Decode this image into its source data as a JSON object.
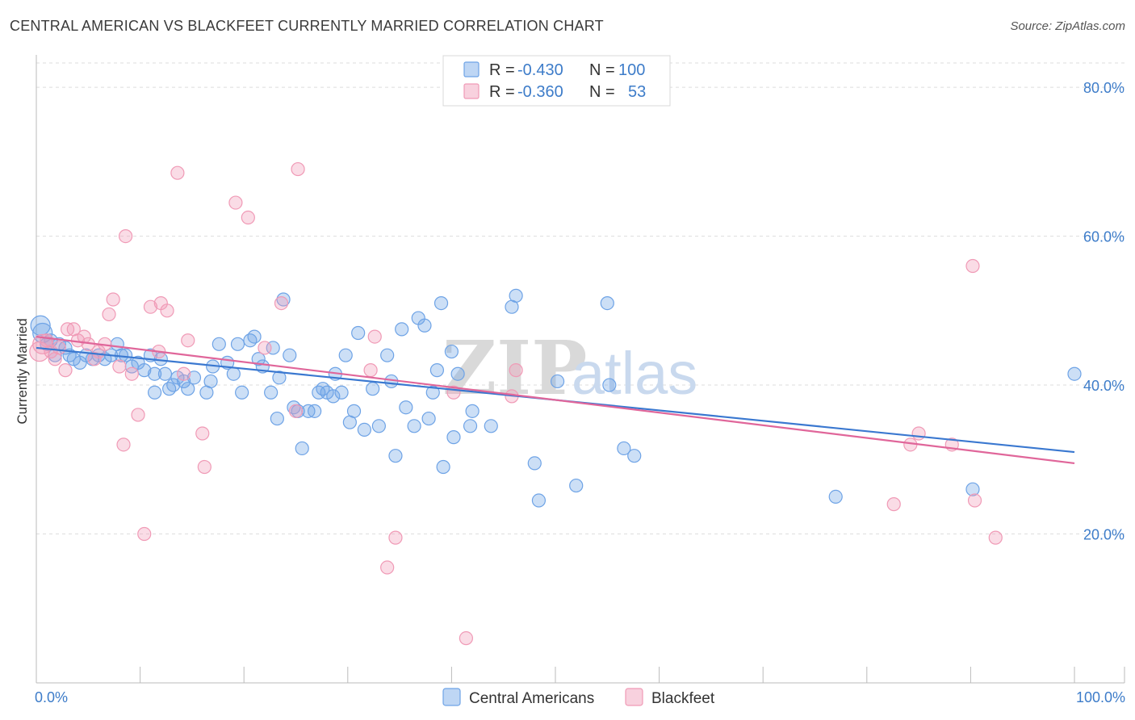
{
  "title": "CENTRAL AMERICAN VS BLACKFEET CURRENTLY MARRIED CORRELATION CHART",
  "source": "Source: ZipAtlas.com",
  "watermark": {
    "zip": "ZIP",
    "atlas": "atlas"
  },
  "legend_box": {
    "rows": [
      {
        "r_label": "R =",
        "r_value": "-0.430",
        "n_label": "N =",
        "n_value": "100",
        "color": "#6ea3e6"
      },
      {
        "r_label": "R =",
        "r_value": "-0.360",
        "n_label": "N =",
        "n_value": "53",
        "color": "#f09ab6"
      }
    ]
  },
  "chart_data": {
    "type": "scatter",
    "title": "CENTRAL AMERICAN VS BLACKFEET CURRENTLY MARRIED CORRELATION CHART",
    "ylabel": "Currently Married",
    "xlabel": "",
    "xlim": [
      0,
      100
    ],
    "ylim": [
      0,
      85
    ],
    "x_tick_labels": [
      "0.0%",
      "100.0%"
    ],
    "y_ticks": [
      20,
      40,
      60,
      80
    ],
    "y_tick_labels": [
      "20.0%",
      "40.0%",
      "60.0%",
      "80.0%"
    ],
    "grid": true,
    "legend": "bottom-center",
    "series": [
      {
        "name": "Central Americans",
        "color": "#6ea3e6",
        "trend": {
          "x": [
            0,
            100
          ],
          "y": [
            45.0,
            31.0
          ],
          "color": "#3a78d0"
        },
        "points": [
          [
            0.4,
            48
          ],
          [
            0.6,
            47
          ],
          [
            1,
            45.5
          ],
          [
            1.4,
            46
          ],
          [
            1.8,
            44
          ],
          [
            2.2,
            45.5
          ],
          [
            2.8,
            45
          ],
          [
            3.2,
            44
          ],
          [
            3.6,
            43.5
          ],
          [
            4.2,
            43
          ],
          [
            4.8,
            44
          ],
          [
            5.4,
            43.5
          ],
          [
            6,
            44
          ],
          [
            6.6,
            43.5
          ],
          [
            7.2,
            44
          ],
          [
            7.8,
            45.5
          ],
          [
            8.2,
            44
          ],
          [
            8.6,
            44
          ],
          [
            9.2,
            42.5
          ],
          [
            9.8,
            43
          ],
          [
            10.4,
            42
          ],
          [
            11,
            44
          ],
          [
            11.4,
            41.5
          ],
          [
            12,
            43.5
          ],
          [
            12.4,
            41.5
          ],
          [
            12.8,
            39.5
          ],
          [
            13.2,
            40
          ],
          [
            13.6,
            41
          ],
          [
            14.2,
            40.5
          ],
          [
            14.6,
            39.5
          ],
          [
            15.2,
            41
          ],
          [
            16.4,
            39
          ],
          [
            16.8,
            40.5
          ],
          [
            17,
            42.5
          ],
          [
            17.6,
            45.5
          ],
          [
            18.4,
            43
          ],
          [
            19,
            41.5
          ],
          [
            19.4,
            45.5
          ],
          [
            19.8,
            39
          ],
          [
            20.6,
            46
          ],
          [
            21,
            46.5
          ],
          [
            21.4,
            43.5
          ],
          [
            21.8,
            42.5
          ],
          [
            22.6,
            39
          ],
          [
            23.2,
            35.5
          ],
          [
            23.4,
            41
          ],
          [
            23.8,
            51.5
          ],
          [
            24.4,
            44
          ],
          [
            24.8,
            37
          ],
          [
            25.2,
            36.5
          ],
          [
            25.6,
            31.5
          ],
          [
            26.2,
            36.5
          ],
          [
            26.8,
            36.5
          ],
          [
            27.2,
            39
          ],
          [
            27.6,
            39.5
          ],
          [
            28,
            39
          ],
          [
            28.6,
            38.5
          ],
          [
            28.8,
            41.5
          ],
          [
            29.4,
            39
          ],
          [
            29.8,
            44
          ],
          [
            30.2,
            35
          ],
          [
            30.6,
            36.5
          ],
          [
            31,
            47
          ],
          [
            31.6,
            34
          ],
          [
            32.4,
            39.5
          ],
          [
            33,
            34.5
          ],
          [
            33.8,
            44
          ],
          [
            34.2,
            40.5
          ],
          [
            34.6,
            30.5
          ],
          [
            35.2,
            47.5
          ],
          [
            35.6,
            37
          ],
          [
            36.4,
            34.5
          ],
          [
            36.8,
            49
          ],
          [
            37.4,
            48
          ],
          [
            37.8,
            35.5
          ],
          [
            38.2,
            39
          ],
          [
            38.6,
            42
          ],
          [
            39,
            51
          ],
          [
            39.2,
            29
          ],
          [
            40,
            44.5
          ],
          [
            40.2,
            33
          ],
          [
            40.6,
            41.5
          ],
          [
            41.8,
            34.5
          ],
          [
            42,
            36.5
          ],
          [
            43.8,
            34.5
          ],
          [
            45.8,
            50.5
          ],
          [
            46.2,
            52
          ],
          [
            48,
            29.5
          ],
          [
            48.4,
            24.5
          ],
          [
            50.2,
            40.5
          ],
          [
            52,
            26.5
          ],
          [
            55,
            51
          ],
          [
            55.2,
            40
          ],
          [
            56.6,
            31.5
          ],
          [
            57.6,
            30.5
          ],
          [
            77,
            25
          ],
          [
            90.2,
            26
          ],
          [
            100,
            41.5
          ],
          [
            11.4,
            39
          ],
          [
            22.8,
            45
          ]
        ]
      },
      {
        "name": "Blackfeet",
        "color": "#f09ab6",
        "trend": {
          "x": [
            0,
            100
          ],
          "y": [
            46.5,
            29.5
          ],
          "color": "#e0669a"
        },
        "points": [
          [
            0.3,
            44.5
          ],
          [
            0.6,
            45.5
          ],
          [
            1,
            46
          ],
          [
            1.4,
            44.5
          ],
          [
            1.8,
            43.5
          ],
          [
            2.2,
            45
          ],
          [
            2.8,
            42
          ],
          [
            3,
            47.5
          ],
          [
            3.6,
            47.5
          ],
          [
            4,
            46
          ],
          [
            4.6,
            46.5
          ],
          [
            5,
            45.5
          ],
          [
            5.6,
            43.5
          ],
          [
            6,
            44.5
          ],
          [
            6.6,
            45.5
          ],
          [
            7,
            49.5
          ],
          [
            7.4,
            51.5
          ],
          [
            8,
            42.5
          ],
          [
            8.4,
            32
          ],
          [
            8.6,
            60
          ],
          [
            9.2,
            41.5
          ],
          [
            9.8,
            36
          ],
          [
            10.4,
            20
          ],
          [
            11,
            50.5
          ],
          [
            11.8,
            44.5
          ],
          [
            12,
            51
          ],
          [
            12.6,
            50
          ],
          [
            13.6,
            68.5
          ],
          [
            14.2,
            41.5
          ],
          [
            14.6,
            46
          ],
          [
            16,
            33.5
          ],
          [
            16.2,
            29
          ],
          [
            19.2,
            64.5
          ],
          [
            20.4,
            62.5
          ],
          [
            22,
            45
          ],
          [
            23.6,
            51
          ],
          [
            25,
            36.5
          ],
          [
            25.2,
            69
          ],
          [
            32.2,
            42
          ],
          [
            32.6,
            46.5
          ],
          [
            33.8,
            15.5
          ],
          [
            34.6,
            19.5
          ],
          [
            40.2,
            39
          ],
          [
            41.4,
            6
          ],
          [
            45.8,
            38.5
          ],
          [
            46.2,
            42
          ],
          [
            82.6,
            24
          ],
          [
            84.2,
            32
          ],
          [
            85,
            33.5
          ],
          [
            88.2,
            32
          ],
          [
            90.2,
            56
          ],
          [
            90.4,
            24.5
          ],
          [
            92.4,
            19.5
          ]
        ]
      }
    ]
  },
  "bottom_legend": {
    "items": [
      {
        "label": "Central Americans",
        "color": "#6ea3e6"
      },
      {
        "label": "Blackfeet",
        "color": "#f09ab6"
      }
    ]
  }
}
